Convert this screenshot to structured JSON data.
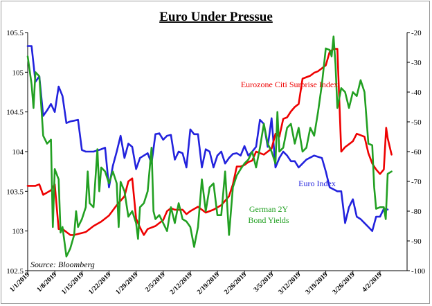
{
  "chart_data": {
    "type": "line",
    "title": "Euro Under Pressue",
    "source": "Source: Bloomberg",
    "left_axis": {
      "ylim": [
        102.5,
        105.5
      ],
      "ticks": [
        "105.5",
        "105",
        "104.5",
        "104",
        "103.5",
        "103",
        "102.5"
      ]
    },
    "right_axis": {
      "ylim": [
        -100,
        -20
      ],
      "ticks": [
        "-20",
        "-30",
        "-40",
        "-50",
        "-60",
        "-70",
        "-80",
        "-90",
        "-100"
      ]
    },
    "x_axis": {
      "range": [
        0,
        98
      ],
      "tick_labels": [
        "1/1/2019",
        "1/8/2019",
        "1/15/2019",
        "1/22/2019",
        "1/29/2019",
        "2/5/2019",
        "2/12/2019",
        "2/19/2019",
        "2/26/2019",
        "3/5/2019",
        "3/12/2019",
        "3/19/2019",
        "3/26/2019",
        "4/2/2019"
      ]
    },
    "grid": false,
    "annotations": {
      "surprise": "Eurozone Citi Surprise Index",
      "euro": "Euro Index",
      "bund_line1": "German 2Y",
      "bund_line2": "Bond Yields"
    },
    "colors": {
      "euro": "#2222dd",
      "surprise": "#ee0000",
      "bund": "#22a022"
    },
    "series": [
      {
        "key": "euro",
        "axis": "left",
        "points": [
          [
            0,
            105.33
          ],
          [
            1,
            105.33
          ],
          [
            2,
            104.88
          ],
          [
            3,
            104.95
          ],
          [
            4,
            104.45
          ],
          [
            5,
            104.52
          ],
          [
            6,
            104.6
          ],
          [
            7,
            104.5
          ],
          [
            8,
            104.82
          ],
          [
            9,
            104.7
          ],
          [
            10,
            104.36
          ],
          [
            11,
            104.38
          ],
          [
            12,
            104.39
          ],
          [
            13,
            104.4
          ],
          [
            14,
            104.02
          ],
          [
            15,
            104.0
          ],
          [
            17,
            104.0
          ],
          [
            19,
            104.03
          ],
          [
            20,
            104.05
          ],
          [
            21,
            103.55
          ],
          [
            22,
            103.82
          ],
          [
            23,
            104.0
          ],
          [
            24,
            104.2
          ],
          [
            25,
            103.92
          ],
          [
            26,
            104.1
          ],
          [
            27,
            104.06
          ],
          [
            28,
            103.78
          ],
          [
            29,
            103.92
          ],
          [
            30,
            103.95
          ],
          [
            31,
            103.98
          ],
          [
            32,
            103.85
          ],
          [
            33,
            104.22
          ],
          [
            34,
            104.23
          ],
          [
            35,
            104.15
          ],
          [
            36,
            104.2
          ],
          [
            37,
            104.21
          ],
          [
            38,
            103.9
          ],
          [
            39,
            104.0
          ],
          [
            40,
            103.98
          ],
          [
            41,
            103.8
          ],
          [
            42,
            104.28
          ],
          [
            43,
            104.22
          ],
          [
            44,
            104.22
          ],
          [
            45,
            103.8
          ],
          [
            46,
            104.03
          ],
          [
            47,
            104.0
          ],
          [
            48,
            103.8
          ],
          [
            49,
            103.95
          ],
          [
            50,
            104.0
          ],
          [
            51,
            103.85
          ],
          [
            52,
            103.92
          ],
          [
            53,
            103.97
          ],
          [
            54,
            103.98
          ],
          [
            55,
            103.95
          ],
          [
            56,
            104.07
          ],
          [
            57,
            103.95
          ],
          [
            58,
            104.0
          ],
          [
            59,
            104.06
          ],
          [
            60,
            104.4
          ],
          [
            61,
            104.35
          ],
          [
            62,
            104.06
          ],
          [
            63,
            104.42
          ],
          [
            64,
            103.8
          ],
          [
            65,
            103.92
          ],
          [
            66,
            104.0
          ],
          [
            67,
            103.95
          ],
          [
            68,
            103.88
          ],
          [
            69,
            103.88
          ],
          [
            70,
            103.8
          ],
          [
            71,
            103.85
          ],
          [
            72,
            103.9
          ],
          [
            74,
            103.95
          ],
          [
            76,
            103.92
          ],
          [
            77,
            103.75
          ],
          [
            78,
            103.55
          ],
          [
            80,
            103.5
          ],
          [
            81,
            103.5
          ],
          [
            82,
            103.1
          ],
          [
            83,
            103.3
          ],
          [
            84,
            103.4
          ],
          [
            85,
            103.18
          ],
          [
            86,
            103.15
          ],
          [
            87,
            103.1
          ],
          [
            88,
            103.05
          ],
          [
            89,
            103.0
          ],
          [
            90,
            103.18
          ],
          [
            91,
            103.18
          ],
          [
            92,
            103.28
          ],
          [
            93,
            103.27
          ]
        ]
      },
      {
        "key": "surprise",
        "axis": "right",
        "points": [
          [
            0,
            -71.5
          ],
          [
            1,
            -71.5
          ],
          [
            2,
            -71.5
          ],
          [
            3,
            -71.0
          ],
          [
            4,
            -74.5
          ],
          [
            6,
            -73.0
          ],
          [
            7,
            -71.0
          ],
          [
            8,
            -86.0
          ],
          [
            9,
            -86.0
          ],
          [
            10,
            -87.0
          ],
          [
            11,
            -88.0
          ],
          [
            12,
            -88.0
          ],
          [
            15,
            -87.0
          ],
          [
            17,
            -85.0
          ],
          [
            19,
            -83.5
          ],
          [
            21,
            -81.5
          ],
          [
            23,
            -78.0
          ],
          [
            25,
            -75.0
          ],
          [
            26,
            -70.0
          ],
          [
            27,
            -69.0
          ],
          [
            28,
            -82.5
          ],
          [
            29,
            -85.5
          ],
          [
            30,
            -88.0
          ],
          [
            31,
            -86.0
          ],
          [
            33,
            -85.0
          ],
          [
            35,
            -83.0
          ],
          [
            36,
            -80.0
          ],
          [
            37,
            -79.0
          ],
          [
            38,
            -79.5
          ],
          [
            39,
            -79.5
          ],
          [
            40,
            -79.5
          ],
          [
            41,
            -81.0
          ],
          [
            42,
            -80.0
          ],
          [
            44,
            -78.5
          ],
          [
            46,
            -80.5
          ],
          [
            48,
            -79.5
          ],
          [
            50,
            -78.0
          ],
          [
            52,
            -75.0
          ],
          [
            53,
            -71.0
          ],
          [
            54,
            -65.0
          ],
          [
            55,
            -65.0
          ],
          [
            56,
            -64.5
          ],
          [
            57,
            -63.5
          ],
          [
            58,
            -63.0
          ],
          [
            59,
            -60.0
          ],
          [
            60,
            -60.5
          ],
          [
            61,
            -61.0
          ],
          [
            62,
            -60.0
          ],
          [
            63,
            -59.0
          ],
          [
            64,
            -54.0
          ],
          [
            65,
            -55.0
          ],
          [
            66,
            -49.0
          ],
          [
            67,
            -48.5
          ],
          [
            68,
            -46.5
          ],
          [
            69,
            -45.0
          ],
          [
            70,
            -44.0
          ],
          [
            71,
            -35.5
          ],
          [
            72,
            -35.0
          ],
          [
            73,
            -34.5
          ],
          [
            74,
            -33.5
          ],
          [
            75,
            -33.0
          ],
          [
            76,
            -32.0
          ],
          [
            77,
            -31.0
          ],
          [
            78,
            -26.5
          ],
          [
            79,
            -25.5
          ],
          [
            80,
            -25.5
          ],
          [
            81,
            -60.0
          ],
          [
            82,
            -58.5
          ],
          [
            83,
            -57.5
          ],
          [
            84,
            -56.5
          ],
          [
            85,
            -54.0
          ],
          [
            86,
            -54.5
          ],
          [
            87,
            -55.0
          ],
          [
            88,
            -60.5
          ],
          [
            89,
            -64.0
          ],
          [
            90,
            -66.0
          ],
          [
            91,
            -67.5
          ],
          [
            92,
            -66.0
          ],
          [
            92.6,
            -52.0
          ],
          [
            93,
            -55.5
          ],
          [
            94,
            -61.0
          ]
        ]
      },
      {
        "key": "bund",
        "axis": "left",
        "points": [
          [
            0,
            105.2
          ],
          [
            1,
            104.85
          ],
          [
            1.5,
            104.55
          ],
          [
            2,
            105.0
          ],
          [
            3,
            104.95
          ],
          [
            4,
            104.2
          ],
          [
            5,
            104.1
          ],
          [
            6,
            104.15
          ],
          [
            6.5,
            103.05
          ],
          [
            7,
            103.78
          ],
          [
            8,
            103.65
          ],
          [
            8.5,
            102.98
          ],
          [
            9,
            103.05
          ],
          [
            10,
            102.68
          ],
          [
            11,
            102.78
          ],
          [
            12,
            102.95
          ],
          [
            12.5,
            103.25
          ],
          [
            13,
            103.05
          ],
          [
            14,
            103.15
          ],
          [
            15,
            103.3
          ],
          [
            15.5,
            103.75
          ],
          [
            16,
            103.35
          ],
          [
            17,
            103.3
          ],
          [
            18,
            104.03
          ],
          [
            18.5,
            103.5
          ],
          [
            19,
            103.8
          ],
          [
            20,
            103.75
          ],
          [
            21,
            103.6
          ],
          [
            22,
            103.75
          ],
          [
            23,
            103.6
          ],
          [
            23.5,
            103.05
          ],
          [
            24,
            103.62
          ],
          [
            25,
            103.5
          ],
          [
            26,
            103.18
          ],
          [
            27,
            103.25
          ],
          [
            28,
            103.1
          ],
          [
            28.5,
            102.9
          ],
          [
            29,
            103.3
          ],
          [
            30,
            103.35
          ],
          [
            31,
            103.5
          ],
          [
            32,
            104.05
          ],
          [
            32.5,
            103.25
          ],
          [
            33,
            103.15
          ],
          [
            34,
            103.2
          ],
          [
            35,
            103.1
          ],
          [
            36,
            103.0
          ],
          [
            37,
            103.3
          ],
          [
            38,
            103.1
          ],
          [
            39,
            103.35
          ],
          [
            40,
            103.15
          ],
          [
            41,
            103.12
          ],
          [
            42,
            103.05
          ],
          [
            43,
            102.8
          ],
          [
            44,
            103.05
          ],
          [
            45,
            103.65
          ],
          [
            46,
            103.25
          ],
          [
            47,
            103.55
          ],
          [
            48,
            103.6
          ],
          [
            49,
            103.2
          ],
          [
            50,
            103.2
          ],
          [
            51,
            103.75
          ],
          [
            52,
            102.95
          ],
          [
            53,
            103.55
          ],
          [
            54,
            103.7
          ],
          [
            55,
            103.78
          ],
          [
            56,
            103.85
          ],
          [
            57,
            103.9
          ],
          [
            58,
            104.0
          ],
          [
            59,
            103.8
          ],
          [
            60,
            104.05
          ],
          [
            61,
            104.35
          ],
          [
            62,
            104.1
          ],
          [
            63,
            104.0
          ],
          [
            64,
            103.85
          ],
          [
            64.5,
            104.5
          ],
          [
            65,
            104.0
          ],
          [
            66,
            104.05
          ],
          [
            67,
            104.3
          ],
          [
            68,
            104.35
          ],
          [
            69,
            104.1
          ],
          [
            70,
            104.3
          ],
          [
            71,
            104.0
          ],
          [
            72,
            104.05
          ],
          [
            73,
            104.3
          ],
          [
            74,
            104.2
          ],
          [
            75,
            104.5
          ],
          [
            76,
            104.85
          ],
          [
            77,
            105.3
          ],
          [
            78,
            105.28
          ],
          [
            78.5,
            105.2
          ],
          [
            79,
            105.45
          ],
          [
            79.5,
            105.1
          ],
          [
            80,
            104.55
          ],
          [
            81,
            104.8
          ],
          [
            82,
            104.75
          ],
          [
            83,
            104.55
          ],
          [
            84,
            104.75
          ],
          [
            85,
            104.7
          ],
          [
            86,
            104.9
          ],
          [
            87,
            104.75
          ],
          [
            88,
            104.1
          ],
          [
            89,
            104.08
          ],
          [
            89.5,
            103.55
          ],
          [
            90,
            103.28
          ],
          [
            91,
            103.3
          ],
          [
            92,
            103.3
          ],
          [
            92.5,
            103.15
          ],
          [
            93,
            103.72
          ],
          [
            94,
            103.75
          ]
        ]
      }
    ]
  }
}
